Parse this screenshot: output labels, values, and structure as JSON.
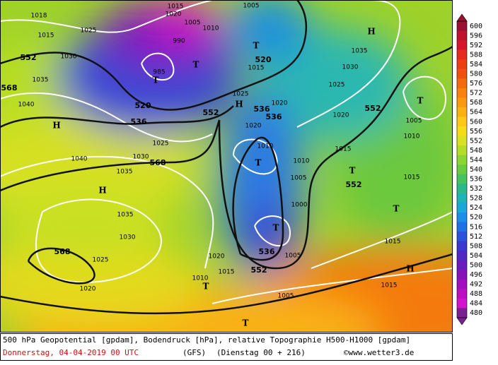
{
  "map_labels": [
    "1018",
    "1015",
    "1025",
    "1030",
    "1035",
    "1040",
    "552",
    "568",
    "H",
    "1020",
    "1015",
    "1005",
    "990",
    "985",
    "T",
    "T",
    "1010",
    "1005",
    "T",
    "520",
    "1015",
    "H",
    "1035",
    "1030",
    "1025",
    "520",
    "536",
    "552",
    "H",
    "1025",
    "536",
    "536",
    "1020",
    "1020",
    "1020",
    "552",
    "T",
    "1005",
    "1010",
    "1025",
    "1030",
    "568",
    "1040",
    "1035",
    "H",
    "1010",
    "T",
    "1010",
    "1015",
    "1005",
    "T",
    "552",
    "1015",
    "T",
    "1000",
    "T",
    "1035",
    "1030",
    "568",
    "1025",
    "536",
    "1005",
    "1020",
    "1015",
    "552",
    "1015",
    "H",
    "1020",
    "1010",
    "T",
    "1005",
    "1015",
    "T"
  ],
  "colorbar": {
    "levels": [
      600,
      596,
      592,
      588,
      584,
      580,
      576,
      572,
      568,
      564,
      560,
      556,
      552,
      548,
      544,
      540,
      536,
      532,
      528,
      524,
      520,
      516,
      512,
      508,
      504,
      500,
      496,
      492,
      488,
      484,
      480
    ],
    "colors": [
      "#9a1030",
      "#c0102e",
      "#d8142a",
      "#e62a1e",
      "#ee3d12",
      "#f05010",
      "#f46a0e",
      "#f7820c",
      "#f99a0e",
      "#fbb210",
      "#fdc816",
      "#f4dc18",
      "#d8e21e",
      "#b4de26",
      "#8cd634",
      "#68cc40",
      "#46c25e",
      "#2cb88a",
      "#1cb4b4",
      "#1aa8d8",
      "#1c8ee8",
      "#2070e8",
      "#2a52dc",
      "#3a38d0",
      "#5028c4",
      "#6a1cbc",
      "#8414b8",
      "#a010bc",
      "#bc10c0",
      "#d414cc",
      "#7a2090"
    ]
  },
  "footer": {
    "line1": "500 hPa Geopotential [gpdam], Bodendruck [hPa], relative Topographie H500-H1000 [gpdam]",
    "date": "Donnerstag, 04-04-2019  00 UTC",
    "model": "(GFS)",
    "run": "(Dienstag 00 + 216)",
    "credit": "©www.wetter3.de"
  }
}
